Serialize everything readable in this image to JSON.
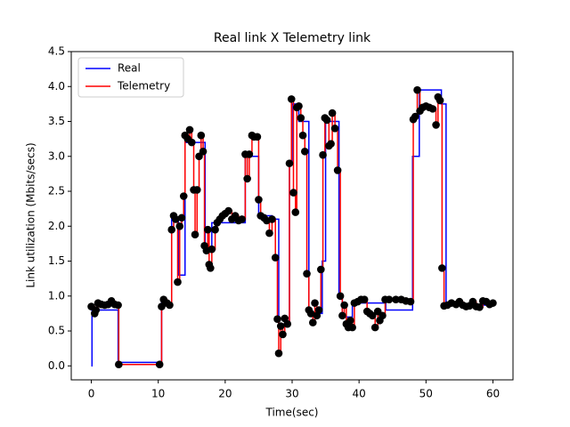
{
  "chart_data": {
    "type": "line",
    "title": "Real link X Telemetry link",
    "xlabel": "Time(sec)",
    "ylabel": "Link utilization (Mbits/secs)",
    "xlim": [
      -3,
      63
    ],
    "ylim": [
      -0.2,
      4.5
    ],
    "xticks": [
      0,
      10,
      20,
      30,
      40,
      50,
      60
    ],
    "yticks": [
      {
        "value": 0,
        "label": "0.0"
      },
      0.5,
      {
        "value": 1,
        "label": "1.0"
      },
      1.5,
      {
        "value": 2,
        "label": "2.0"
      },
      2.5,
      {
        "value": 3,
        "label": "3.0"
      },
      3.5,
      {
        "value": 4,
        "label": "4.0"
      },
      4.5
    ],
    "drawstyle": "steps-post",
    "legend": "upper left",
    "series": [
      {
        "name": "Real",
        "color": "#0000ff",
        "x": [
          0,
          0.1,
          4,
          10,
          10.5,
          12,
          13,
          14,
          17,
          18,
          23,
          25,
          27,
          28,
          29.6,
          30,
          31,
          32.5,
          34.5,
          35,
          37,
          37.5,
          39,
          44,
          48,
          49,
          52.3,
          53,
          60
        ],
        "values": [
          0,
          0.8,
          0.05,
          0.05,
          0.9,
          2.1,
          1.3,
          3.2,
          1.7,
          2.05,
          3.0,
          2.15,
          2.1,
          0.6,
          2.9,
          3.75,
          3.5,
          0.75,
          1.5,
          3.5,
          1.0,
          0.7,
          0.9,
          0.8,
          3.0,
          3.95,
          3.75,
          0.87,
          0.9
        ]
      },
      {
        "name": "Telemetry",
        "color": "#ff0000",
        "marker_color": "#000000",
        "x": [
          0,
          0.5,
          0.7,
          1,
          1.5,
          2,
          2.5,
          3,
          3.5,
          4,
          4.1,
          10.2,
          10.5,
          10.8,
          11.3,
          11.7,
          12,
          12.3,
          12.6,
          12.9,
          13.2,
          13.5,
          13.8,
          14,
          14.4,
          14.7,
          15,
          15.3,
          15.5,
          15.8,
          16.1,
          16.4,
          16.7,
          16.9,
          17.2,
          17.4,
          17.6,
          17.8,
          18,
          18.5,
          18.8,
          19.2,
          19.6,
          20,
          20.5,
          21,
          21.5,
          22,
          22.5,
          23,
          23.3,
          23.6,
          24,
          24.3,
          24.8,
          25,
          25.3,
          25.8,
          26.2,
          26.6,
          27,
          27.5,
          27.8,
          28,
          28.3,
          28.6,
          28.9,
          29.3,
          29.6,
          29.9,
          30.2,
          30.5,
          30.7,
          31,
          31.3,
          31.6,
          31.9,
          32.2,
          32.5,
          32.8,
          33.1,
          33.4,
          33.7,
          34,
          34.3,
          34.6,
          34.9,
          35.2,
          35.5,
          35.8,
          36,
          36.4,
          36.8,
          37.2,
          37.5,
          37.8,
          38.1,
          38.4,
          38.7,
          39,
          39.3,
          39.8,
          40.3,
          40.8,
          41.2,
          41.6,
          42,
          42.4,
          42.8,
          43.1,
          43.5,
          43.9,
          44.5,
          45.5,
          46.3,
          47,
          47.7,
          48.1,
          48.4,
          48.7,
          49.1,
          49.5,
          50,
          50.5,
          51,
          51.5,
          51.8,
          52.1,
          52.4,
          52.7,
          53.2,
          53.8,
          54.5,
          55,
          55.5,
          56,
          56.5,
          57,
          57.5,
          58,
          58.5,
          59,
          59.5,
          60
        ],
        "values": [
          0.85,
          0.75,
          0.8,
          0.9,
          0.88,
          0.87,
          0.88,
          0.93,
          0.88,
          0.87,
          0.02,
          0.02,
          0.85,
          0.95,
          0.9,
          0.87,
          1.95,
          2.15,
          2.1,
          1.2,
          2.0,
          2.12,
          2.43,
          3.3,
          3.25,
          3.38,
          3.2,
          2.52,
          1.88,
          2.52,
          3.0,
          3.3,
          3.07,
          1.72,
          1.65,
          1.95,
          1.45,
          1.4,
          1.67,
          1.95,
          2.05,
          2.1,
          2.15,
          2.18,
          2.22,
          2.1,
          2.15,
          2.08,
          2.1,
          3.03,
          2.68,
          3.03,
          3.3,
          3.28,
          3.28,
          2.38,
          2.15,
          2.12,
          2.08,
          1.9,
          2.1,
          1.55,
          0.67,
          0.18,
          0.57,
          0.45,
          0.68,
          0.6,
          2.9,
          3.82,
          2.48,
          2.2,
          3.7,
          3.72,
          3.55,
          3.3,
          3.07,
          1.32,
          0.8,
          0.75,
          0.62,
          0.9,
          0.72,
          0.8,
          1.38,
          3.02,
          3.55,
          3.52,
          3.15,
          3.18,
          3.62,
          3.4,
          2.8,
          1.0,
          0.72,
          0.87,
          0.6,
          0.55,
          0.65,
          0.55,
          0.9,
          0.92,
          0.95,
          0.95,
          0.78,
          0.75,
          0.72,
          0.55,
          0.78,
          0.65,
          0.72,
          0.95,
          0.95,
          0.95,
          0.95,
          0.93,
          0.92,
          3.53,
          3.57,
          3.95,
          3.65,
          3.7,
          3.72,
          3.7,
          3.68,
          3.45,
          3.85,
          3.8,
          1.4,
          0.86,
          0.87,
          0.9,
          0.88,
          0.92,
          0.87,
          0.85,
          0.86,
          0.92,
          0.85,
          0.84,
          0.93,
          0.92,
          0.88,
          0.9
        ]
      }
    ]
  }
}
